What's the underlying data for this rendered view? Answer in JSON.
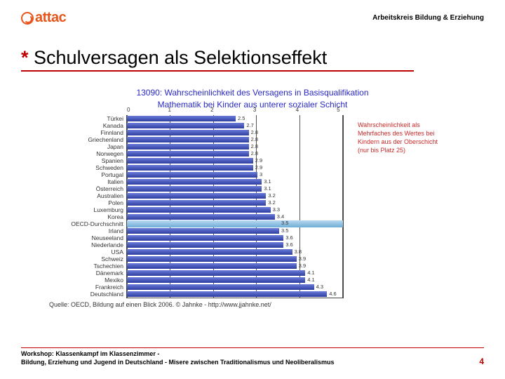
{
  "header": {
    "logo_text": "attac",
    "right_text": "Arbeitskreis Bildung & Erziehung"
  },
  "title": {
    "asterisk": "*",
    "text": "Schulversagen als Selektionseffekt"
  },
  "chart": {
    "type": "bar",
    "title_line1": "13090: Wahrscheinlichkeit des Versagens in Basisqualifikation",
    "title_line2": "Mathematik bei Kinder aus unterer sozialer Schicht",
    "note_text": "Wahrscheinlichkeit als Mehrfaches des Wertes bei Kindern aus der Oberschicht (nur bis Platz 25)",
    "axis_min": 0,
    "axis_max": 5,
    "axis_ticks": [
      "0",
      "1",
      "2",
      "3",
      "4",
      "5"
    ],
    "grid_color": "#555555",
    "bar_fill_top": "#6a7bd9",
    "bar_fill_bottom": "#2e3ea0",
    "highlight_fill_top": "#b8d8f0",
    "highlight_fill_bottom": "#6fadd6",
    "highlight_index": 15,
    "rows": [
      {
        "label": "Türkei",
        "value": 2.5
      },
      {
        "label": "Kanada",
        "value": 2.7
      },
      {
        "label": "Finnland",
        "value": 2.8
      },
      {
        "label": "Griechenland",
        "value": 2.8
      },
      {
        "label": "Japan",
        "value": 2.8
      },
      {
        "label": "Norwegen",
        "value": 2.8
      },
      {
        "label": "Spanien",
        "value": 2.9
      },
      {
        "label": "Schweden",
        "value": 2.9
      },
      {
        "label": "Portugal",
        "value": 3
      },
      {
        "label": "Italien",
        "value": 3.1
      },
      {
        "label": "Österreich",
        "value": 3.1
      },
      {
        "label": "Australien",
        "value": 3.2
      },
      {
        "label": "Polen",
        "value": 3.2
      },
      {
        "label": "Luxemburg",
        "value": 3.3
      },
      {
        "label": "Korea",
        "value": 3.4
      },
      {
        "label": "OECD-Durchschnitt",
        "value": 3.5
      },
      {
        "label": "Irland",
        "value": 3.5
      },
      {
        "label": "Neuseeland",
        "value": 3.6
      },
      {
        "label": "Niederlande",
        "value": 3.6
      },
      {
        "label": "USA",
        "value": 3.8
      },
      {
        "label": "Schweiz",
        "value": 3.9
      },
      {
        "label": "Tschechien",
        "value": 3.9
      },
      {
        "label": "Dänemark",
        "value": 4.1
      },
      {
        "label": "Mexiko",
        "value": 4.1
      },
      {
        "label": "Frankreich",
        "value": 4.3
      },
      {
        "label": "Deutschland",
        "value": 4.6
      }
    ],
    "source": "Quelle: OECD, Bildung auf einen Blick 2006. © Jahnke - http://www.jjahnke.net/"
  },
  "footer": {
    "line1": "Workshop: Klassenkampf im Klassenzimmer -",
    "line2": "Bildung, Erziehung und Jugend in Deutschland - Misere zwischen Traditionalismus und Neoliberalismus",
    "page": "4"
  },
  "colors": {
    "accent": "#e8561c",
    "underline": "#c00000"
  }
}
